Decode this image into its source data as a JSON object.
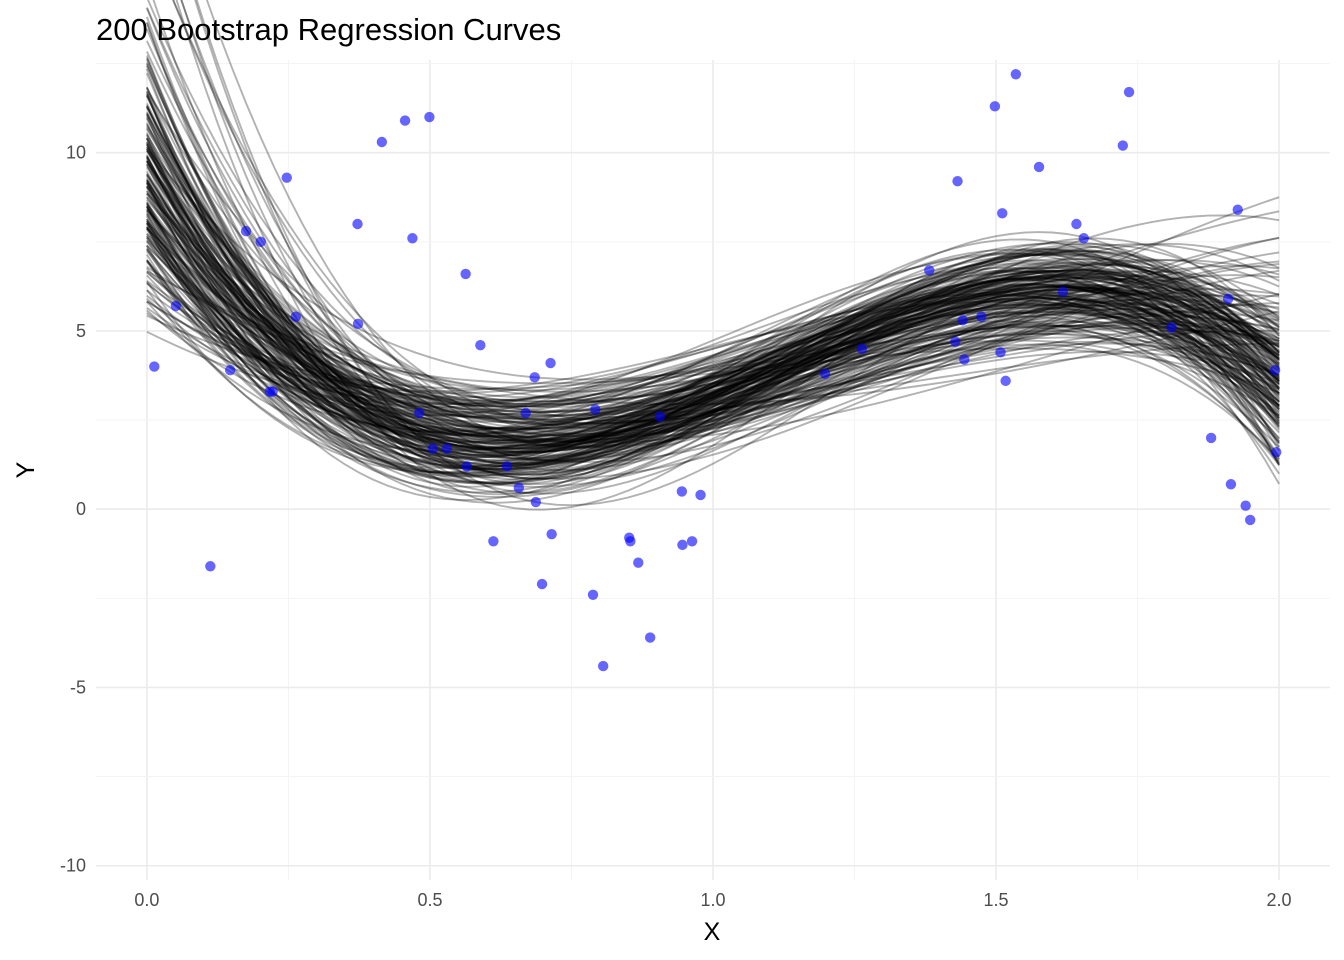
{
  "chart_data": {
    "type": "scatter",
    "title": "200 Bootstrap Regression Curves",
    "xlabel": "X",
    "ylabel": "Y",
    "xlim": [
      -0.09,
      2.09
    ],
    "ylim": [
      -10.4,
      12.6
    ],
    "x_ticks": [
      0.0,
      0.5,
      1.0,
      1.5,
      2.0
    ],
    "x_tick_labels": [
      "0.0",
      "0.5",
      "1.0",
      "1.5",
      "2.0"
    ],
    "y_ticks": [
      -10,
      -5,
      0,
      5,
      10
    ],
    "y_tick_labels": [
      "-10",
      "-5",
      "0",
      "5",
      "10"
    ],
    "grid": true,
    "legend": "none",
    "n_curves": 200,
    "curve_color": "#000000",
    "point_color": "#0000ff",
    "points": [
      [
        0.013,
        4.0
      ],
      [
        0.051,
        5.7
      ],
      [
        0.112,
        -1.6
      ],
      [
        0.147,
        3.9
      ],
      [
        0.175,
        7.8
      ],
      [
        0.201,
        7.5
      ],
      [
        0.217,
        3.3
      ],
      [
        0.222,
        3.3
      ],
      [
        0.247,
        9.3
      ],
      [
        0.263,
        5.4
      ],
      [
        0.372,
        8.0
      ],
      [
        0.373,
        5.2
      ],
      [
        0.415,
        10.3
      ],
      [
        0.456,
        10.9
      ],
      [
        0.469,
        7.6
      ],
      [
        0.481,
        2.7
      ],
      [
        0.499,
        11.0
      ],
      [
        0.505,
        1.7
      ],
      [
        0.53,
        1.7
      ],
      [
        0.563,
        6.6
      ],
      [
        0.565,
        1.2
      ],
      [
        0.589,
        4.6
      ],
      [
        0.612,
        -0.9
      ],
      [
        0.636,
        1.2
      ],
      [
        0.657,
        0.6
      ],
      [
        0.669,
        2.7
      ],
      [
        0.685,
        3.7
      ],
      [
        0.687,
        0.2
      ],
      [
        0.698,
        -2.1
      ],
      [
        0.713,
        4.1
      ],
      [
        0.715,
        -0.7
      ],
      [
        0.788,
        -2.4
      ],
      [
        0.792,
        2.8
      ],
      [
        0.806,
        -4.4
      ],
      [
        0.852,
        -0.8
      ],
      [
        0.854,
        -0.9
      ],
      [
        0.868,
        -1.5
      ],
      [
        0.889,
        -3.6
      ],
      [
        0.906,
        2.6
      ],
      [
        0.945,
        0.5
      ],
      [
        0.946,
        -1.0
      ],
      [
        0.963,
        -0.9
      ],
      [
        0.978,
        0.4
      ],
      [
        1.198,
        3.8
      ],
      [
        1.263,
        4.5
      ],
      [
        1.382,
        6.7
      ],
      [
        1.428,
        4.7
      ],
      [
        1.432,
        9.2
      ],
      [
        1.441,
        5.3
      ],
      [
        1.444,
        4.2
      ],
      [
        1.474,
        5.4
      ],
      [
        1.498,
        11.3
      ],
      [
        1.508,
        4.4
      ],
      [
        1.511,
        8.3
      ],
      [
        1.517,
        3.6
      ],
      [
        1.535,
        12.2
      ],
      [
        1.576,
        9.6
      ],
      [
        1.618,
        6.1
      ],
      [
        1.642,
        8.0
      ],
      [
        1.655,
        7.6
      ],
      [
        1.724,
        10.2
      ],
      [
        1.735,
        11.7
      ],
      [
        1.81,
        5.1
      ],
      [
        1.88,
        2.0
      ],
      [
        1.91,
        5.9
      ],
      [
        1.915,
        0.7
      ],
      [
        1.927,
        8.4
      ],
      [
        1.941,
        0.1
      ],
      [
        1.949,
        -0.3
      ],
      [
        1.993,
        3.9
      ],
      [
        1.995,
        1.6
      ]
    ]
  }
}
